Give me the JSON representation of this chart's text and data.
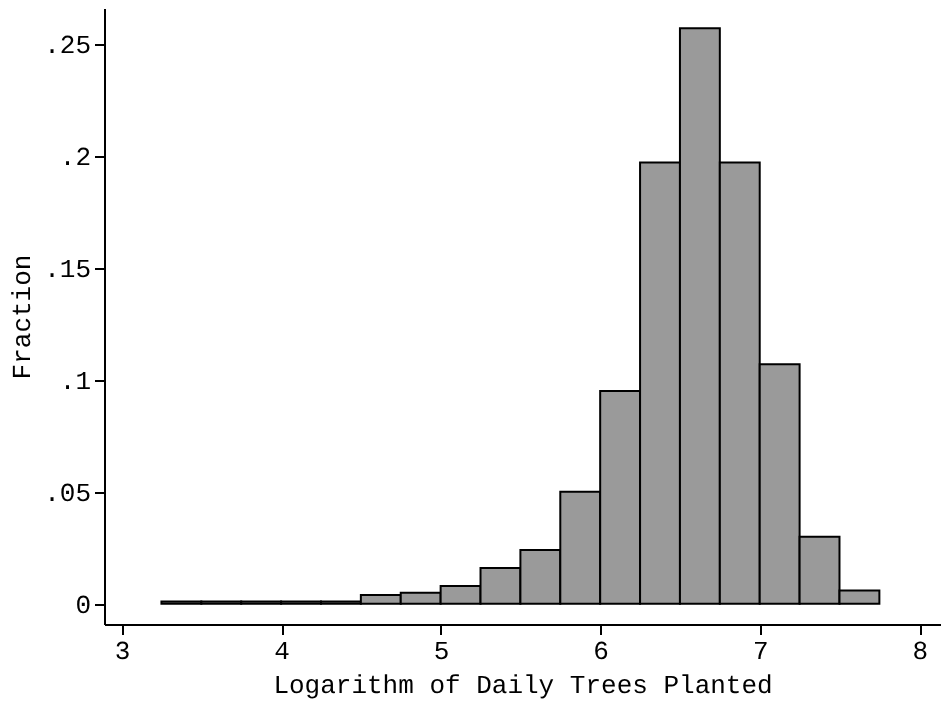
{
  "chart_data": {
    "type": "histogram",
    "xlabel": "Logarithm of Daily Trees Planted",
    "ylabel": "Fraction",
    "bins": [
      3.25,
      3.5,
      3.75,
      4,
      4.25,
      4.5,
      4.75,
      5,
      5.25,
      5.5,
      5.75,
      6,
      6.25,
      6.5,
      6.75,
      7,
      7.25,
      7.5,
      7.75
    ],
    "values": [
      0.001,
      0.001,
      0.001,
      0.001,
      0.001,
      0.004,
      0.005,
      0.008,
      0.016,
      0.024,
      0.05,
      0.095,
      0.197,
      0.257,
      0.197,
      0.107,
      0.03,
      0.006
    ],
    "color": "#9a9a9a",
    "xlim": [
      2.89,
      8.13
    ],
    "ylim": [
      -0.009,
      0.266
    ],
    "xticks": [
      3,
      4,
      5,
      6,
      7,
      8
    ],
    "yticks": [
      0,
      {
        "value": 0.05,
        "label": ".05"
      },
      {
        "value": 0.1,
        "label": ".1"
      },
      {
        "value": 0.15,
        "label": ".15"
      },
      {
        "value": 0.2,
        "label": ".2"
      },
      {
        "value": 0.25,
        "label": ".25"
      }
    ],
    "grid": false
  }
}
